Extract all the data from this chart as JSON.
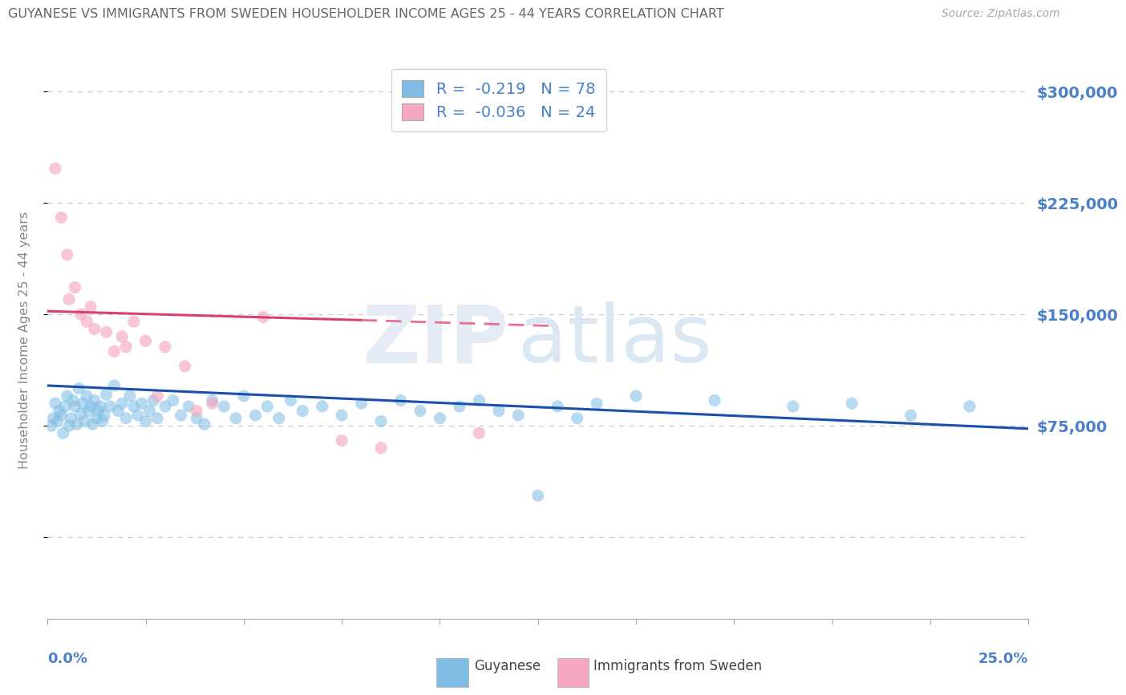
{
  "title": "GUYANESE VS IMMIGRANTS FROM SWEDEN HOUSEHOLDER INCOME AGES 25 - 44 YEARS CORRELATION CHART",
  "source": "Source: ZipAtlas.com",
  "ylabel": "Householder Income Ages 25 - 44 years",
  "xlim": [
    0.0,
    25.0
  ],
  "ylim": [
    -55000,
    320000
  ],
  "yticks": [
    0,
    75000,
    150000,
    225000,
    300000
  ],
  "right_ytick_labels": [
    "",
    "$75,000",
    "$150,000",
    "$225,000",
    "$300,000"
  ],
  "blue_color": "#7fbde4",
  "pink_color": "#f5a8c0",
  "trend_blue_color": "#1a4faa",
  "trend_pink_solid_color": "#d94070",
  "trend_pink_dash_color": "#e87090",
  "title_color": "#666666",
  "source_color": "#aaaaaa",
  "axis_label_color": "#4a80c8",
  "grid_color": "#cccccc",
  "legend_text_color": "#4a80c8",
  "bottom_text_color": "#444444",
  "trend_blue_x0": 0,
  "trend_blue_y0": 102000,
  "trend_blue_x1": 25,
  "trend_blue_y1": 73000,
  "trend_pink_solid_x0": 0,
  "trend_pink_solid_y0": 152000,
  "trend_pink_solid_x1": 8,
  "trend_pink_solid_y1": 146000,
  "trend_pink_dash_x0": 8,
  "trend_pink_dash_y0": 146000,
  "trend_pink_dash_x1": 13,
  "trend_pink_dash_y1": 142000,
  "blue_x": [
    0.1,
    0.15,
    0.2,
    0.25,
    0.3,
    0.35,
    0.4,
    0.45,
    0.5,
    0.55,
    0.6,
    0.65,
    0.7,
    0.75,
    0.8,
    0.85,
    0.9,
    0.95,
    1.0,
    1.05,
    1.1,
    1.15,
    1.2,
    1.25,
    1.3,
    1.35,
    1.4,
    1.45,
    1.5,
    1.6,
    1.7,
    1.8,
    1.9,
    2.0,
    2.1,
    2.2,
    2.3,
    2.4,
    2.5,
    2.6,
    2.7,
    2.8,
    3.0,
    3.2,
    3.4,
    3.6,
    3.8,
    4.0,
    4.2,
    4.5,
    4.8,
    5.0,
    5.3,
    5.6,
    5.9,
    6.2,
    6.5,
    7.0,
    7.5,
    8.0,
    8.5,
    9.0,
    9.5,
    10.0,
    10.5,
    11.0,
    12.0,
    13.0,
    14.0,
    15.0,
    17.0,
    19.0,
    20.5,
    22.0,
    23.5,
    12.5,
    11.5,
    13.5
  ],
  "blue_y": [
    75000,
    80000,
    90000,
    78000,
    85000,
    82000,
    70000,
    88000,
    95000,
    75000,
    80000,
    92000,
    88000,
    76000,
    100000,
    83000,
    90000,
    78000,
    95000,
    85000,
    88000,
    76000,
    92000,
    80000,
    85000,
    88000,
    78000,
    82000,
    96000,
    88000,
    102000,
    85000,
    90000,
    80000,
    95000,
    88000,
    82000,
    90000,
    78000,
    85000,
    92000,
    80000,
    88000,
    92000,
    82000,
    88000,
    80000,
    76000,
    92000,
    88000,
    80000,
    95000,
    82000,
    88000,
    80000,
    92000,
    85000,
    88000,
    82000,
    90000,
    78000,
    92000,
    85000,
    80000,
    88000,
    92000,
    82000,
    88000,
    90000,
    95000,
    92000,
    88000,
    90000,
    82000,
    88000,
    28000,
    85000,
    80000
  ],
  "pink_x": [
    0.2,
    0.35,
    0.5,
    0.55,
    0.7,
    0.85,
    1.0,
    1.1,
    1.2,
    1.5,
    1.7,
    1.9,
    2.0,
    2.2,
    2.5,
    2.8,
    3.0,
    3.5,
    4.2,
    5.5,
    7.5,
    8.5,
    11.0,
    3.8
  ],
  "pink_y": [
    248000,
    215000,
    190000,
    160000,
    168000,
    150000,
    145000,
    155000,
    140000,
    138000,
    125000,
    135000,
    128000,
    145000,
    132000,
    95000,
    128000,
    115000,
    90000,
    148000,
    65000,
    60000,
    70000,
    85000
  ]
}
